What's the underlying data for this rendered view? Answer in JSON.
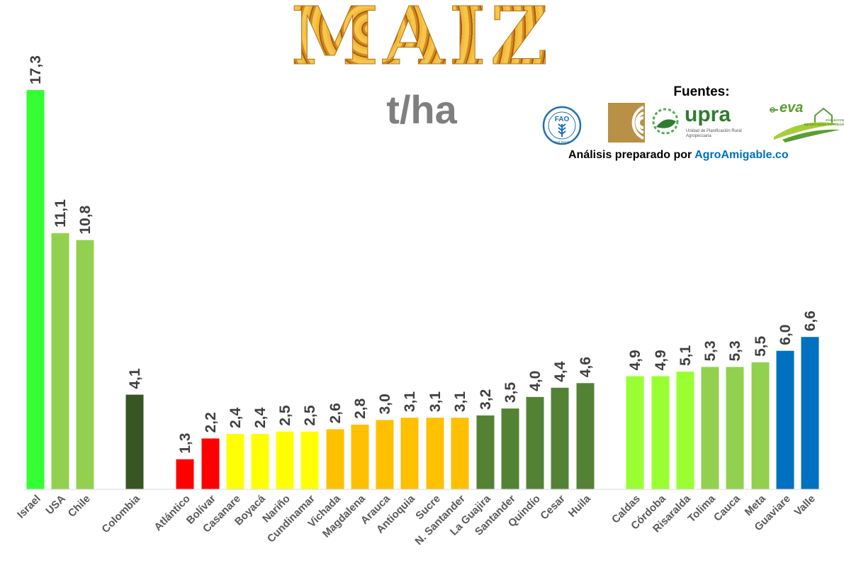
{
  "header": {
    "title": "MAIZ",
    "unit": "t/ha",
    "sources_title": "Fuentes:",
    "analysis_prefix": "Análisis preparado por ",
    "analysis_brand": "AgroAmigable.co"
  },
  "logos": {
    "fao": {
      "icon": "fao-logo-icon",
      "text": "FAO",
      "motto": "FIAT PANIS"
    },
    "upra": {
      "icon": "upra-logo-icon",
      "word": "upra",
      "subtitle": "Unidad de Planificación Rural Agropecuaria"
    },
    "eva": {
      "icon": "eva-logo-icon",
      "word": "eva",
      "subtitle": "evaluaciones agropecuarias municipales"
    }
  },
  "colors": {
    "israel": "#33ff33",
    "light_green": "#92d050",
    "dark_green_colombia": "#375623",
    "red": "#ff0000",
    "yellow": "#ffff00",
    "orange": "#ffc000",
    "mid_green": "#548235",
    "lime": "#99ff33",
    "blue": "#0070c0",
    "value_text": "#404040",
    "category_text": "#595959",
    "unit_text": "#7f7f7f"
  },
  "chart_data": {
    "type": "bar",
    "title": "MAIZ",
    "ylabel": "t/ha",
    "ylim": [
      0,
      17.3
    ],
    "grid": false,
    "legend": "none",
    "categories": [
      "Israel",
      "USA",
      "Chile",
      "Colombia",
      "Atlántico",
      "Bolívar",
      "Casanare",
      "Boyacá",
      "Nariño",
      "Cundinamar",
      "Vichada",
      "Magdalena",
      "Arauca",
      "Antioquia",
      "Sucre",
      "N. Santander",
      "La Guajira",
      "Santander",
      "Quindío",
      "Cesar",
      "Huila",
      "Caldas",
      "Córdoba",
      "Risaralda",
      "Tolima",
      "Cauca",
      "Meta",
      "Guaviare",
      "Valle"
    ],
    "values": [
      17.3,
      11.1,
      10.8,
      4.1,
      1.3,
      2.2,
      2.4,
      2.4,
      2.5,
      2.5,
      2.6,
      2.8,
      3.0,
      3.1,
      3.1,
      3.1,
      3.2,
      3.5,
      4.0,
      4.4,
      4.6,
      4.9,
      4.9,
      5.1,
      5.3,
      5.3,
      5.5,
      6.0,
      6.6
    ],
    "value_labels": [
      "17,3",
      "11,1",
      "10,8",
      "4,1",
      "1,3",
      "2,2",
      "2,4",
      "2,4",
      "2,5",
      "2,5",
      "2,6",
      "2,8",
      "3,0",
      "3,1",
      "3,1",
      "3,1",
      "3,2",
      "3,5",
      "4,0",
      "4,4",
      "4,6",
      "4,9",
      "4,9",
      "5,1",
      "5,3",
      "5,3",
      "5,5",
      "6,0",
      "6,6"
    ],
    "bar_colors": [
      "#33ff33",
      "#92d050",
      "#92d050",
      "#375623",
      "#ff0000",
      "#ff0000",
      "#ffff00",
      "#ffff00",
      "#ffff00",
      "#ffff00",
      "#ffc000",
      "#ffc000",
      "#ffc000",
      "#ffc000",
      "#ffc000",
      "#ffc000",
      "#548235",
      "#548235",
      "#548235",
      "#548235",
      "#548235",
      "#99ff33",
      "#99ff33",
      "#99ff33",
      "#92d050",
      "#92d050",
      "#92d050",
      "#0070c0",
      "#0070c0"
    ]
  }
}
